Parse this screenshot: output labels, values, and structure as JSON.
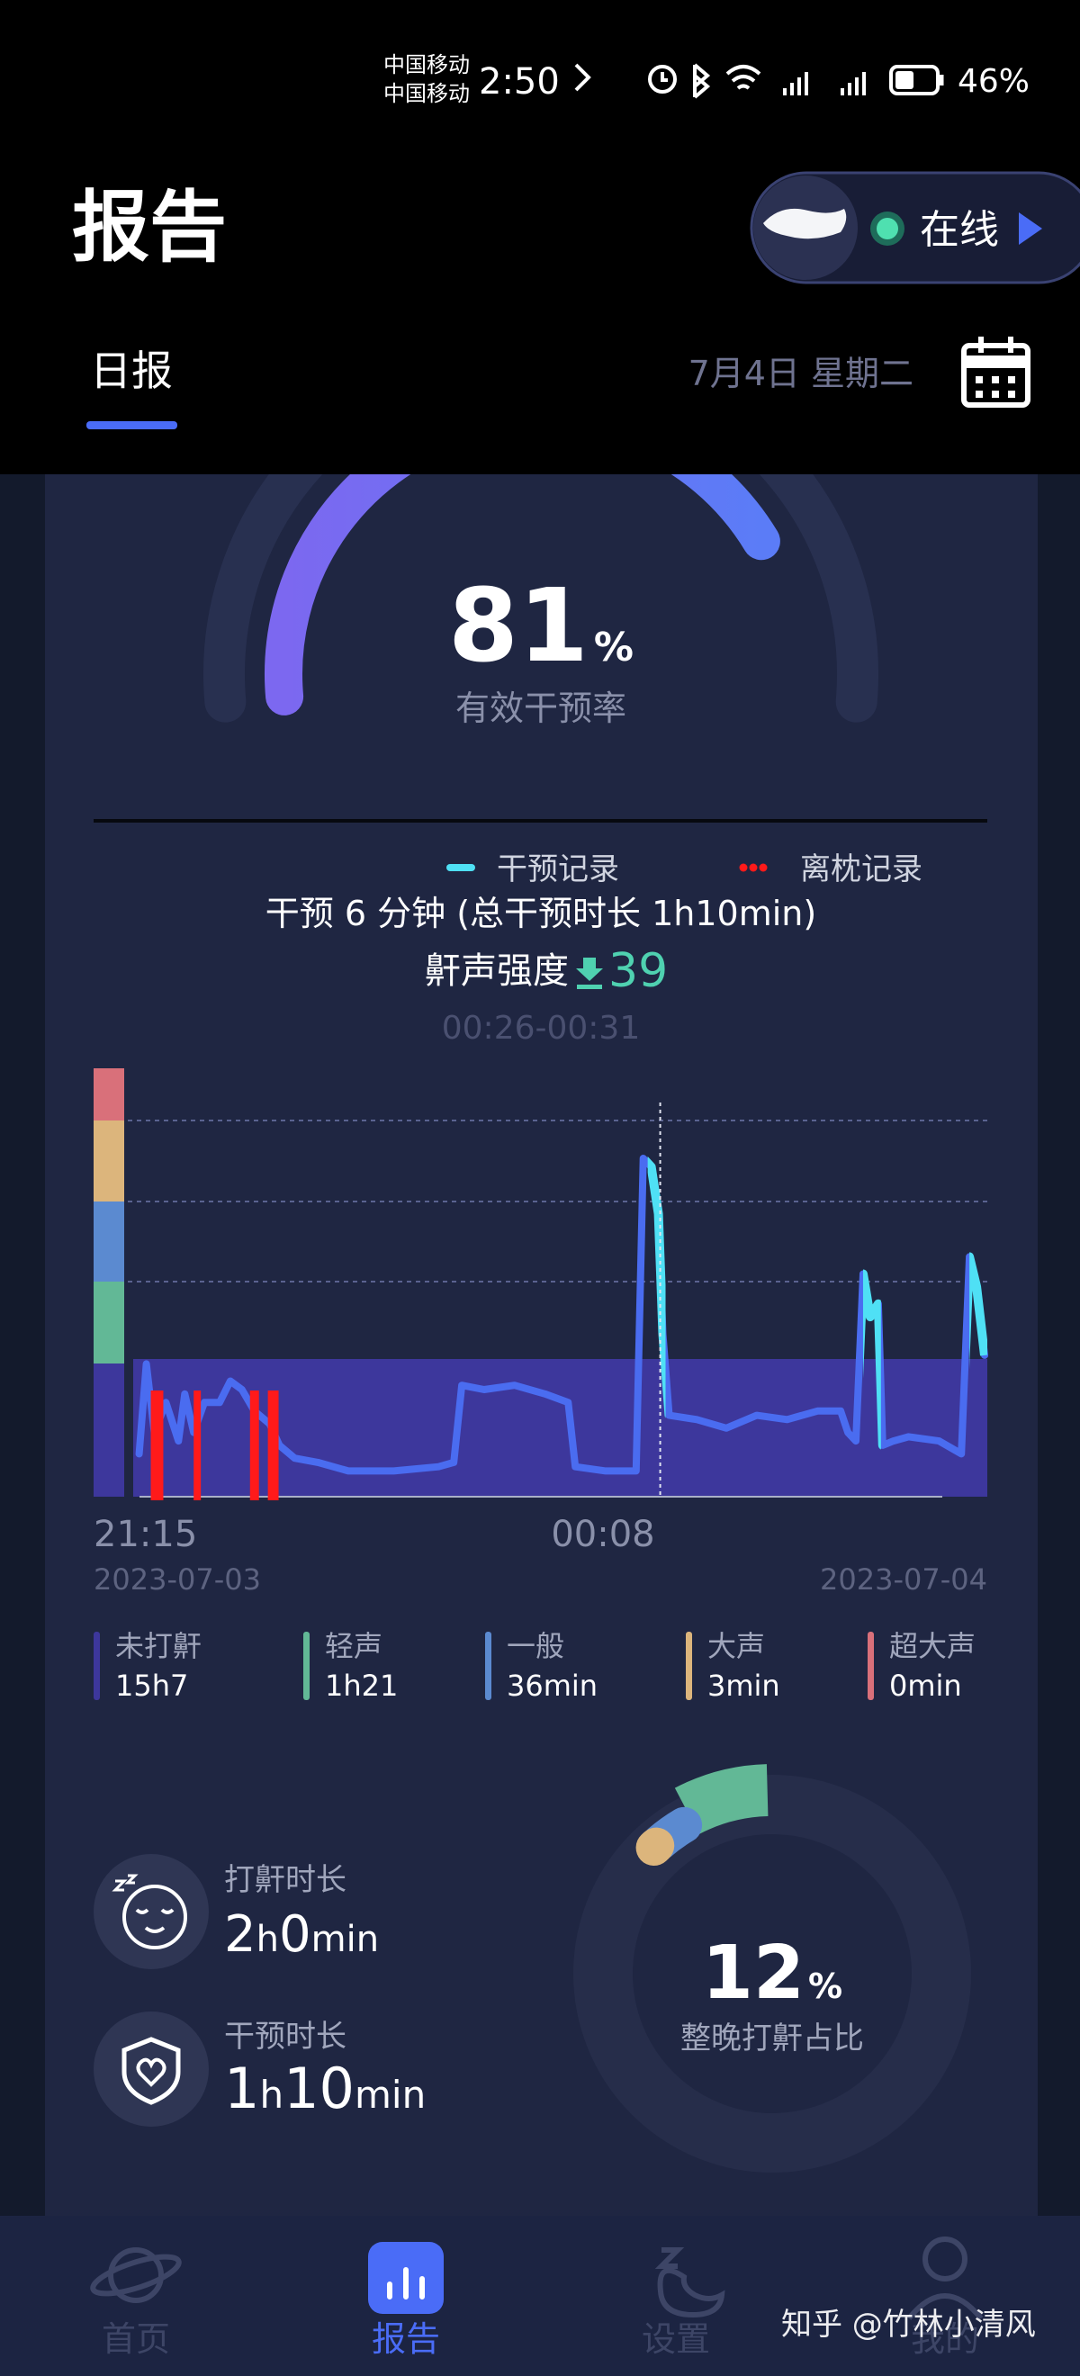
{
  "status_bar": {
    "carrier_1": "中国移动",
    "carrier_2": "中国移动",
    "time": "2:50",
    "battery": "46%"
  },
  "header": {
    "title": "报告",
    "device_status": "在线"
  },
  "tabs": {
    "active": "日报",
    "date": "7月4日 星期二"
  },
  "efficiency": {
    "value": 81,
    "unit": "%",
    "label": "有效干预率"
  },
  "chart_data": {
    "type": "line",
    "legend": [
      {
        "name": "干预记录",
        "color": "#4fe0f5"
      },
      {
        "name": "离枕记录",
        "color": "#ff1a1a"
      }
    ],
    "summary": "干预 6 分钟 (总干预时长 1h10min)",
    "intensity": {
      "label": "鼾声强度",
      "value": 39
    },
    "time_range": "00:26-00:31",
    "x": [
      5.1,
      5.9,
      6.8,
      8.1,
      9.5,
      10.2,
      11.2,
      12.4,
      14.1,
      15.3,
      16.6,
      18,
      19.7,
      20.8,
      22.5,
      25.1,
      28.5,
      33.6,
      38.6,
      40.3,
      41.2,
      43.7,
      47.1,
      50.5,
      53.1,
      53.9,
      57.3,
      60.7,
      61.5,
      62.4,
      63.2,
      63.7,
      64.4,
      67.5,
      70.8,
      74.2,
      77.6,
      81,
      83.6,
      84.4,
      85.3,
      86.1,
      86.9,
      87.8,
      88.3,
      89.5,
      91.2,
      94.6,
      97.1,
      98,
      98.8,
      99.7
    ],
    "values": [
      10,
      31,
      15,
      22,
      13,
      24,
      15,
      22,
      22,
      27,
      25,
      20,
      17,
      12,
      9,
      8,
      6,
      6,
      7,
      8,
      26,
      25,
      26,
      24,
      22,
      7,
      6,
      6,
      79,
      77,
      66,
      38,
      19,
      18,
      16,
      19,
      18,
      20,
      20,
      15,
      13,
      52,
      42,
      45,
      12,
      13,
      14,
      13,
      10,
      56,
      49,
      33
    ],
    "color": "#4a6cf0",
    "xlim": [
      0,
      100
    ],
    "ylim": [
      0,
      100
    ],
    "xticks": [
      {
        "value": 0,
        "label": "21:15"
      },
      {
        "value": 57,
        "label": "00:08"
      }
    ],
    "interventions": [
      [
        62.0,
        64.0
      ],
      [
        86.1,
        88.1
      ],
      [
        98.0,
        100
      ]
    ],
    "off_pillow": [
      [
        6.4,
        7.8
      ],
      [
        11.2,
        12.0
      ],
      [
        17.5,
        18.5
      ],
      [
        19.5,
        20.7
      ]
    ],
    "cursor_x": 63.4,
    "dates": [
      "2023-07-03",
      "2023-07-04"
    ],
    "levels": [
      {
        "name": "未打鼾",
        "duration": "15h7",
        "color": "#3d379c"
      },
      {
        "name": "轻声",
        "duration": "1h21",
        "color": "#62b896"
      },
      {
        "name": "一般",
        "duration": "36min",
        "color": "#5b8ad0"
      },
      {
        "name": "大声",
        "duration": "3min",
        "color": "#dcb57c"
      },
      {
        "name": "超大声",
        "duration": "0min",
        "color": "#d9707a"
      }
    ]
  },
  "stats": {
    "snore_label": "打鼾时长",
    "snore_time": "2h0min",
    "intervention_label": "干预时长",
    "intervention_time": "1h10min"
  },
  "snore_ratio": {
    "value": 12,
    "unit": "%",
    "label": "整晚打鼾占比"
  },
  "nav": [
    "首页",
    "报告",
    "设置",
    "我的"
  ],
  "nav_active": 1,
  "watermark": "知乎 @竹林小清风"
}
